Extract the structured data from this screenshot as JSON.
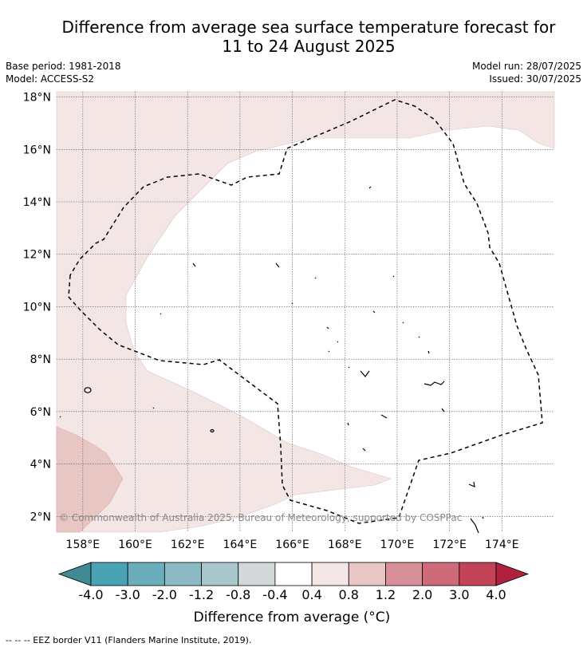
{
  "title": {
    "line1": "Difference from average sea surface temperature forecast for",
    "line2": "11 to 24 August 2025"
  },
  "meta": {
    "base_period": "Base period: 1981-2018",
    "model": "Model: ACCESS-S2",
    "model_run": "Model run: 28/07/2025",
    "issued": "Issued: 30/07/2025"
  },
  "map": {
    "lon_range": [
      157,
      176
    ],
    "lat_range": [
      1.4,
      18.2
    ],
    "lon_ticks": [
      "158°E",
      "160°E",
      "162°E",
      "164°E",
      "166°E",
      "168°E",
      "170°E",
      "172°E",
      "174°E"
    ],
    "lat_ticks": [
      "2°N",
      "4°N",
      "6°N",
      "8°N",
      "10°N",
      "12°N",
      "14°N",
      "16°N",
      "18°N"
    ],
    "copyright": "© Commonwealth of Australia 2025, Bureau of Meteorology, supported by COSPPac",
    "colors": {
      "band_0_4_to_0_8": "#f5e6e6",
      "band_0_8_to_1_2": "#e8c6c3",
      "background": "#ffffff"
    }
  },
  "colorbar": {
    "title": "Difference from average (°C)",
    "tick_labels": [
      "-4.0",
      "-3.0",
      "-2.0",
      "-1.2",
      "-0.8",
      "-0.4",
      "0.4",
      "0.8",
      "1.2",
      "2.0",
      "3.0",
      "4.0"
    ],
    "colors": [
      "#4aa3b5",
      "#6aaebc",
      "#8bbac5",
      "#a8c7cc",
      "#d3d8da",
      "#ffffff",
      "#f5e6e6",
      "#e8c6c3",
      "#d98f98",
      "#cf6b78",
      "#c24456"
    ],
    "under_color": "#3f8a93",
    "over_color": "#b0213d"
  },
  "footer": {
    "legend": "--  --  -- EEZ border V11 (Flanders Marine Institute, 2019)."
  }
}
